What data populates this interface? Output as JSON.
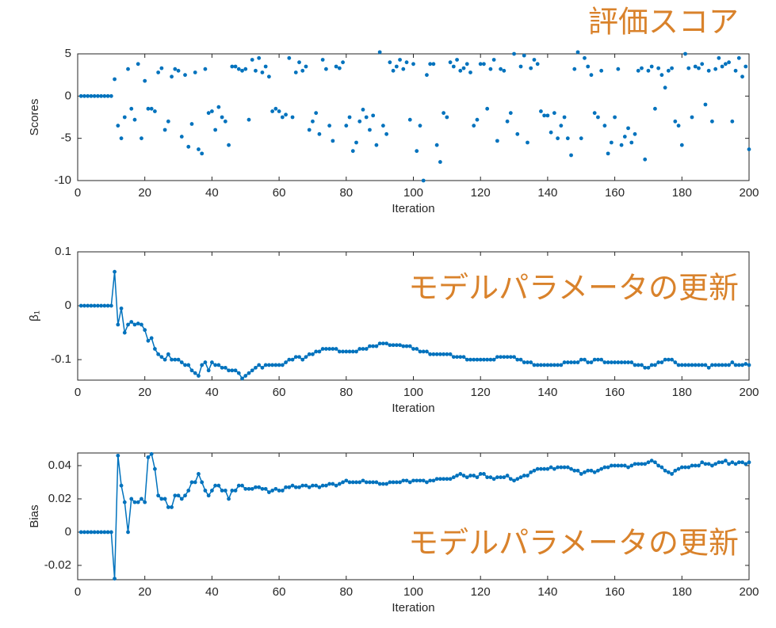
{
  "chart_data": [
    {
      "type": "scatter",
      "ylabel": "Scores",
      "xlabel": "Iteration",
      "annotation": "評価スコア",
      "xlim": [
        0,
        200
      ],
      "xticks": [
        0,
        20,
        40,
        60,
        80,
        100,
        120,
        140,
        160,
        180,
        200
      ],
      "ylim": [
        -10,
        5
      ],
      "yticks": [
        -10,
        -5,
        0,
        5
      ],
      "color": "#0072bd",
      "x": [
        1,
        2,
        3,
        4,
        5,
        6,
        7,
        8,
        9,
        10,
        11,
        12,
        13,
        14,
        15,
        16,
        17,
        18,
        19,
        20,
        21,
        22,
        23,
        24,
        25,
        26,
        27,
        28,
        29,
        30,
        31,
        32,
        33,
        34,
        35,
        36,
        37,
        38,
        39,
        40,
        41,
        42,
        43,
        44,
        45,
        46,
        47,
        48,
        49,
        50,
        51,
        52,
        53,
        54,
        55,
        56,
        57,
        58,
        59,
        60,
        61,
        62,
        63,
        64,
        65,
        66,
        67,
        68,
        69,
        70,
        71,
        72,
        73,
        74,
        75,
        76,
        77,
        78,
        79,
        80,
        81,
        82,
        83,
        84,
        85,
        86,
        87,
        88,
        89,
        90,
        91,
        92,
        93,
        94,
        95,
        96,
        97,
        98,
        99,
        100,
        101,
        102,
        103,
        104,
        105,
        106,
        107,
        108,
        109,
        110,
        111,
        112,
        113,
        114,
        115,
        116,
        117,
        118,
        119,
        120,
        121,
        122,
        123,
        124,
        125,
        126,
        127,
        128,
        129,
        130,
        131,
        132,
        133,
        134,
        135,
        136,
        137,
        138,
        139,
        140,
        141,
        142,
        143,
        144,
        145,
        146,
        147,
        148,
        149,
        150,
        151,
        152,
        153,
        154,
        155,
        156,
        157,
        158,
        159,
        160,
        161,
        162,
        163,
        164,
        165,
        166,
        167,
        168,
        169,
        170,
        171,
        172,
        173,
        174,
        175,
        176,
        177,
        178,
        179,
        180,
        181,
        182,
        183,
        184,
        185,
        186,
        187,
        188,
        189,
        190,
        191,
        192,
        193,
        194,
        195,
        196,
        197,
        198,
        199,
        200
      ],
      "values": [
        0,
        0,
        0,
        0,
        0,
        0,
        0,
        0,
        0,
        0,
        2,
        -3.5,
        -5,
        -2.5,
        3.2,
        -1.5,
        -2.8,
        3.8,
        -5,
        1.8,
        -1.5,
        -1.5,
        -1.8,
        2.8,
        3.3,
        -4,
        -3,
        2.3,
        3.2,
        3,
        -4.8,
        2.5,
        -6,
        -3.3,
        2.8,
        -6.3,
        -6.8,
        3.2,
        -2,
        -1.8,
        -4,
        -1.3,
        -2.5,
        -3,
        -5.8,
        3.5,
        3.5,
        3.2,
        3,
        3.2,
        -2.8,
        4.3,
        3,
        4.5,
        2.8,
        3.5,
        2.3,
        -1.8,
        -1.5,
        -1.8,
        -2.5,
        -2.2,
        4.5,
        -2.5,
        2.8,
        4,
        3,
        3.5,
        -4,
        -3,
        -2,
        -4.5,
        4.3,
        3.2,
        -3.5,
        -5.3,
        3.5,
        3.3,
        4,
        -3.5,
        -2.5,
        -6.5,
        -5.5,
        -3,
        -1.6,
        -2.5,
        -4,
        -2.3,
        -5.8,
        5.2,
        -3.5,
        -4.5,
        4,
        3,
        3.5,
        4.3,
        3.2,
        4,
        -2.8,
        3.8,
        -6.5,
        -3.5,
        -10,
        2.5,
        3.8,
        3.8,
        -5.8,
        -7.8,
        -2,
        -2.5,
        4,
        3.5,
        4.3,
        3,
        3.3,
        3.8,
        2.8,
        -3.5,
        -2.8,
        3.8,
        3.8,
        -1.5,
        3.2,
        4.3,
        -5.3,
        3.2,
        3,
        -3,
        -2,
        5,
        -4.5,
        3.5,
        4.8,
        -5.5,
        3.3,
        4.3,
        3.8,
        -1.8,
        -2.3,
        -2.3,
        -4.3,
        -2,
        -5,
        -3.5,
        -2.5,
        -5,
        -7,
        3.2,
        5.2,
        -5,
        4.5,
        3.5,
        2.5,
        -2,
        -2.5,
        3,
        -3.5,
        -6.8,
        -5.5,
        -2.5,
        3.2,
        -5.8,
        -4.8,
        -3.8,
        -5.5,
        -4.5,
        3,
        3.3,
        -7.5,
        3,
        3.5,
        -1.5,
        3.3,
        2.5,
        1,
        3,
        3.3,
        -3,
        -3.5,
        -5.8,
        5,
        3.3,
        -2.5,
        3.5,
        3.3,
        3.8,
        -1,
        3,
        -3,
        3.2,
        4.5,
        3.5,
        3.8,
        4,
        -3,
        3,
        4.5,
        2.3,
        3.5,
        -6.3
      ]
    },
    {
      "type": "line",
      "ylabel": "β₁",
      "xlabel": "Iteration",
      "annotation": "モデルパラメータの更新",
      "xlim": [
        0,
        200
      ],
      "xticks": [
        0,
        20,
        40,
        60,
        80,
        100,
        120,
        140,
        160,
        180,
        200
      ],
      "ylim": [
        -0.138,
        0.1
      ],
      "yticks": [
        -0.1,
        0,
        0.1
      ],
      "color": "#0072bd",
      "x": [
        1,
        2,
        3,
        4,
        5,
        6,
        7,
        8,
        9,
        10,
        11,
        12,
        13,
        14,
        15,
        16,
        17,
        18,
        19,
        20,
        21,
        22,
        23,
        24,
        25,
        26,
        27,
        28,
        29,
        30,
        31,
        32,
        33,
        34,
        35,
        36,
        37,
        38,
        39,
        40,
        41,
        42,
        43,
        44,
        45,
        46,
        47,
        48,
        49,
        50,
        51,
        52,
        53,
        54,
        55,
        56,
        57,
        58,
        59,
        60,
        61,
        62,
        63,
        64,
        65,
        66,
        67,
        68,
        69,
        70,
        71,
        72,
        73,
        74,
        75,
        76,
        77,
        78,
        79,
        80,
        81,
        82,
        83,
        84,
        85,
        86,
        87,
        88,
        89,
        90,
        91,
        92,
        93,
        94,
        95,
        96,
        97,
        98,
        99,
        100,
        101,
        102,
        103,
        104,
        105,
        106,
        107,
        108,
        109,
        110,
        111,
        112,
        113,
        114,
        115,
        116,
        117,
        118,
        119,
        120,
        121,
        122,
        123,
        124,
        125,
        126,
        127,
        128,
        129,
        130,
        131,
        132,
        133,
        134,
        135,
        136,
        137,
        138,
        139,
        140,
        141,
        142,
        143,
        144,
        145,
        146,
        147,
        148,
        149,
        150,
        151,
        152,
        153,
        154,
        155,
        156,
        157,
        158,
        159,
        160,
        161,
        162,
        163,
        164,
        165,
        166,
        167,
        168,
        169,
        170,
        171,
        172,
        173,
        174,
        175,
        176,
        177,
        178,
        179,
        180,
        181,
        182,
        183,
        184,
        185,
        186,
        187,
        188,
        189,
        190,
        191,
        192,
        193,
        194,
        195,
        196,
        197,
        198,
        199,
        200
      ],
      "values": [
        0,
        0,
        0,
        0,
        0,
        0,
        0,
        0,
        0,
        0,
        0.063,
        -0.035,
        -0.005,
        -0.05,
        -0.035,
        -0.03,
        -0.035,
        -0.033,
        -0.035,
        -0.045,
        -0.065,
        -0.06,
        -0.08,
        -0.09,
        -0.095,
        -0.1,
        -0.09,
        -0.1,
        -0.1,
        -0.1,
        -0.105,
        -0.11,
        -0.11,
        -0.12,
        -0.125,
        -0.13,
        -0.11,
        -0.105,
        -0.12,
        -0.105,
        -0.11,
        -0.11,
        -0.115,
        -0.115,
        -0.12,
        -0.12,
        -0.12,
        -0.125,
        -0.135,
        -0.13,
        -0.125,
        -0.12,
        -0.115,
        -0.11,
        -0.115,
        -0.11,
        -0.11,
        -0.11,
        -0.11,
        -0.11,
        -0.11,
        -0.105,
        -0.1,
        -0.1,
        -0.095,
        -0.095,
        -0.1,
        -0.095,
        -0.09,
        -0.09,
        -0.085,
        -0.085,
        -0.08,
        -0.08,
        -0.08,
        -0.08,
        -0.08,
        -0.085,
        -0.085,
        -0.085,
        -0.085,
        -0.085,
        -0.085,
        -0.08,
        -0.08,
        -0.08,
        -0.075,
        -0.075,
        -0.075,
        -0.07,
        -0.07,
        -0.07,
        -0.073,
        -0.073,
        -0.073,
        -0.073,
        -0.075,
        -0.075,
        -0.075,
        -0.08,
        -0.08,
        -0.085,
        -0.085,
        -0.085,
        -0.09,
        -0.09,
        -0.09,
        -0.09,
        -0.09,
        -0.09,
        -0.09,
        -0.095,
        -0.095,
        -0.095,
        -0.095,
        -0.1,
        -0.1,
        -0.1,
        -0.1,
        -0.1,
        -0.1,
        -0.1,
        -0.1,
        -0.1,
        -0.095,
        -0.095,
        -0.095,
        -0.095,
        -0.095,
        -0.095,
        -0.1,
        -0.1,
        -0.105,
        -0.105,
        -0.105,
        -0.11,
        -0.11,
        -0.11,
        -0.11,
        -0.11,
        -0.11,
        -0.11,
        -0.11,
        -0.11,
        -0.105,
        -0.105,
        -0.105,
        -0.105,
        -0.105,
        -0.1,
        -0.1,
        -0.105,
        -0.105,
        -0.1,
        -0.1,
        -0.1,
        -0.105,
        -0.105,
        -0.105,
        -0.105,
        -0.105,
        -0.105,
        -0.105,
        -0.105,
        -0.105,
        -0.11,
        -0.11,
        -0.11,
        -0.115,
        -0.115,
        -0.11,
        -0.11,
        -0.105,
        -0.105,
        -0.1,
        -0.1,
        -0.1,
        -0.105,
        -0.11,
        -0.11,
        -0.11,
        -0.11,
        -0.11,
        -0.11,
        -0.11,
        -0.11,
        -0.11,
        -0.115,
        -0.11,
        -0.11,
        -0.11,
        -0.11,
        -0.11,
        -0.11,
        -0.105,
        -0.11,
        -0.11,
        -0.11,
        -0.108,
        -0.11
      ]
    },
    {
      "type": "line",
      "ylabel": "Bias",
      "xlabel": "Iteration",
      "annotation": "モデルパラメータの更新",
      "xlim": [
        0,
        200
      ],
      "xticks": [
        0,
        20,
        40,
        60,
        80,
        100,
        120,
        140,
        160,
        180,
        200
      ],
      "ylim": [
        -0.0286,
        0.0476
      ],
      "yticks": [
        -0.02,
        0,
        0.02,
        0.04
      ],
      "color": "#0072bd",
      "x": [
        1,
        2,
        3,
        4,
        5,
        6,
        7,
        8,
        9,
        10,
        11,
        12,
        13,
        14,
        15,
        16,
        17,
        18,
        19,
        20,
        21,
        22,
        23,
        24,
        25,
        26,
        27,
        28,
        29,
        30,
        31,
        32,
        33,
        34,
        35,
        36,
        37,
        38,
        39,
        40,
        41,
        42,
        43,
        44,
        45,
        46,
        47,
        48,
        49,
        50,
        51,
        52,
        53,
        54,
        55,
        56,
        57,
        58,
        59,
        60,
        61,
        62,
        63,
        64,
        65,
        66,
        67,
        68,
        69,
        70,
        71,
        72,
        73,
        74,
        75,
        76,
        77,
        78,
        79,
        80,
        81,
        82,
        83,
        84,
        85,
        86,
        87,
        88,
        89,
        90,
        91,
        92,
        93,
        94,
        95,
        96,
        97,
        98,
        99,
        100,
        101,
        102,
        103,
        104,
        105,
        106,
        107,
        108,
        109,
        110,
        111,
        112,
        113,
        114,
        115,
        116,
        117,
        118,
        119,
        120,
        121,
        122,
        123,
        124,
        125,
        126,
        127,
        128,
        129,
        130,
        131,
        132,
        133,
        134,
        135,
        136,
        137,
        138,
        139,
        140,
        141,
        142,
        143,
        144,
        145,
        146,
        147,
        148,
        149,
        150,
        151,
        152,
        153,
        154,
        155,
        156,
        157,
        158,
        159,
        160,
        161,
        162,
        163,
        164,
        165,
        166,
        167,
        168,
        169,
        170,
        171,
        172,
        173,
        174,
        175,
        176,
        177,
        178,
        179,
        180,
        181,
        182,
        183,
        184,
        185,
        186,
        187,
        188,
        189,
        190,
        191,
        192,
        193,
        194,
        195,
        196,
        197,
        198,
        199,
        200
      ],
      "values": [
        0,
        0,
        0,
        0,
        0,
        0,
        0,
        0,
        0,
        0,
        -0.028,
        0.046,
        0.028,
        0.018,
        0,
        0.02,
        0.018,
        0.018,
        0.02,
        0.018,
        0.045,
        0.047,
        0.038,
        0.022,
        0.02,
        0.02,
        0.015,
        0.015,
        0.022,
        0.022,
        0.02,
        0.022,
        0.025,
        0.03,
        0.03,
        0.035,
        0.03,
        0.025,
        0.022,
        0.025,
        0.028,
        0.028,
        0.025,
        0.025,
        0.02,
        0.025,
        0.025,
        0.028,
        0.028,
        0.026,
        0.026,
        0.026,
        0.027,
        0.027,
        0.026,
        0.026,
        0.024,
        0.025,
        0.026,
        0.025,
        0.025,
        0.027,
        0.027,
        0.028,
        0.027,
        0.027,
        0.028,
        0.028,
        0.027,
        0.028,
        0.028,
        0.027,
        0.028,
        0.028,
        0.029,
        0.029,
        0.028,
        0.029,
        0.03,
        0.031,
        0.03,
        0.03,
        0.03,
        0.03,
        0.031,
        0.03,
        0.03,
        0.03,
        0.03,
        0.029,
        0.029,
        0.029,
        0.03,
        0.03,
        0.03,
        0.03,
        0.031,
        0.031,
        0.03,
        0.031,
        0.031,
        0.031,
        0.031,
        0.03,
        0.031,
        0.031,
        0.032,
        0.032,
        0.032,
        0.032,
        0.032,
        0.033,
        0.034,
        0.035,
        0.034,
        0.033,
        0.034,
        0.034,
        0.033,
        0.035,
        0.035,
        0.033,
        0.033,
        0.032,
        0.033,
        0.033,
        0.033,
        0.034,
        0.032,
        0.031,
        0.032,
        0.033,
        0.034,
        0.034,
        0.036,
        0.037,
        0.038,
        0.038,
        0.038,
        0.038,
        0.039,
        0.038,
        0.039,
        0.039,
        0.039,
        0.039,
        0.038,
        0.037,
        0.037,
        0.035,
        0.036,
        0.037,
        0.037,
        0.036,
        0.037,
        0.038,
        0.039,
        0.039,
        0.04,
        0.04,
        0.04,
        0.04,
        0.04,
        0.039,
        0.04,
        0.041,
        0.041,
        0.041,
        0.041,
        0.042,
        0.043,
        0.042,
        0.04,
        0.039,
        0.037,
        0.036,
        0.035,
        0.037,
        0.038,
        0.039,
        0.039,
        0.039,
        0.04,
        0.04,
        0.04,
        0.042,
        0.041,
        0.041,
        0.04,
        0.041,
        0.042,
        0.042,
        0.043,
        0.041,
        0.042,
        0.041,
        0.042,
        0.042,
        0.041,
        0.042
      ]
    }
  ]
}
